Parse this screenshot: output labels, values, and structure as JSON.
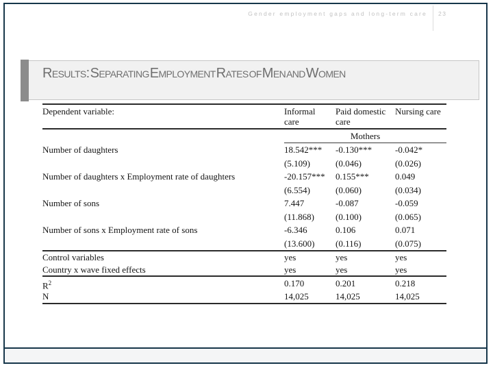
{
  "page_header": {
    "running_title": "Gender employment gaps and long-term care",
    "page_number": "23"
  },
  "slide": {
    "title": "Results: Separating Employment Rates of Men and Women"
  },
  "table": {
    "dependent_label": "Dependent variable:",
    "columns": [
      "Informal care",
      "Paid domestic care",
      "Nursing care"
    ],
    "group_header": "Mothers",
    "rows": [
      {
        "label": "Number of daughters",
        "values": [
          "18.542***",
          "-0.130***",
          "-0.042*"
        ],
        "se": [
          "(5.109)",
          "(0.046)",
          "(0.026)"
        ]
      },
      {
        "label": "Number of daughters x Employment rate of daughters",
        "values": [
          "-20.157***",
          "0.155***",
          "0.049"
        ],
        "se": [
          "(6.554)",
          "(0.060)",
          "(0.034)"
        ]
      },
      {
        "label": "Number of sons",
        "values": [
          "7.447",
          "-0.087",
          "-0.059"
        ],
        "se": [
          "(11.868)",
          "(0.100)",
          "(0.065)"
        ]
      },
      {
        "label": "Number of sons x Employment rate of sons",
        "values": [
          "-6.346",
          "0.106",
          "0.071"
        ],
        "se": [
          "(13.600)",
          "(0.116)",
          "(0.075)"
        ]
      }
    ],
    "controls": [
      {
        "label": "Control variables",
        "values": [
          "yes",
          "yes",
          "yes"
        ]
      },
      {
        "label": "Country x wave fixed effects",
        "values": [
          "yes",
          "yes",
          "yes"
        ]
      }
    ],
    "stats": [
      {
        "label": "R",
        "sup": "2",
        "values": [
          "0.170",
          "0.201",
          "0.218"
        ]
      },
      {
        "label": "N",
        "sup": "",
        "values": [
          "14,025",
          "14,025",
          "14,025"
        ]
      }
    ]
  },
  "colors": {
    "frame_border": "#16364a",
    "title_accent": "#8c8c8c",
    "title_box_bg": "#f1f1f1",
    "title_text": "#6f6f6f",
    "running_header_text": "#c2c2c2",
    "footer_bg": "#f4f5f6",
    "table_text": "#141414"
  }
}
